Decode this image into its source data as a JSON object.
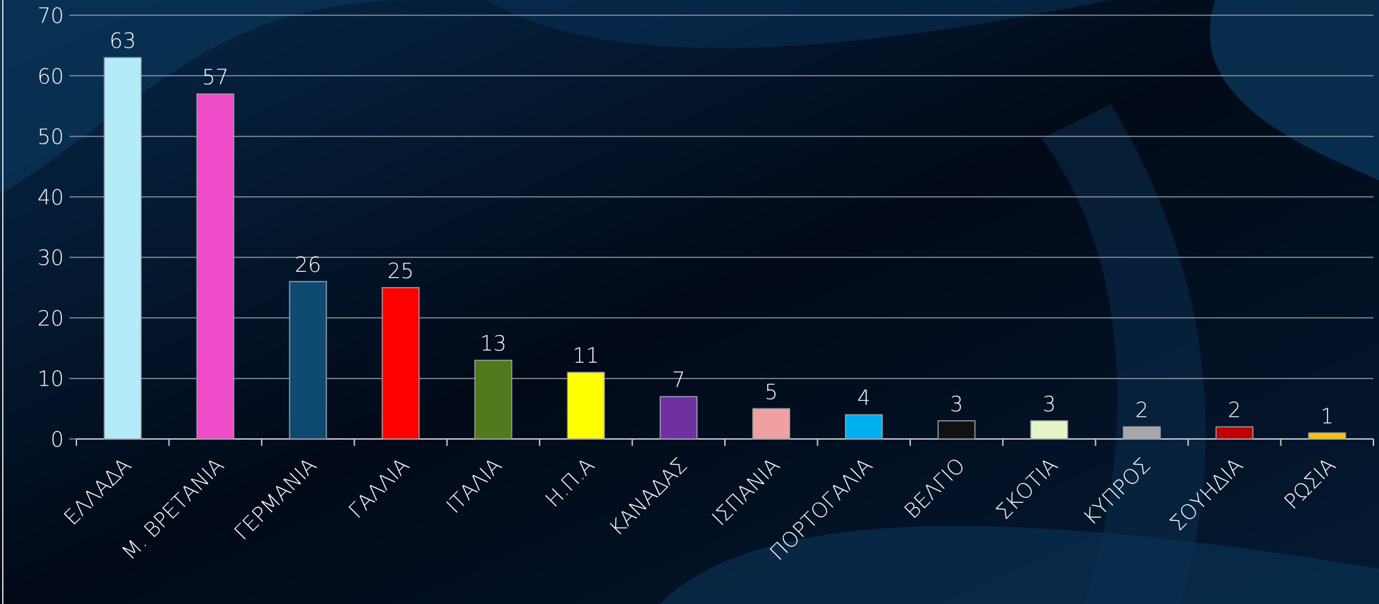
{
  "chart_data": {
    "type": "bar",
    "categories": [
      "ΕΛΛΑΔΑ",
      "Μ. ΒΡΕΤΑΝΙΑ",
      "ΓΕΡΜΑΝΙΑ",
      "ΓΑΛΛΙΑ",
      "ΙΤΑΛΙΑ",
      "Η.Π.Α",
      "ΚΑΝΑΔΑΣ",
      "ΙΣΠΑΝΙΑ",
      "ΠΟΡΤΟΓΑΛΙΑ",
      "ΒΕΛΓΙΟ",
      "ΣΚΟΤΙΑ",
      "ΚΥΠΡΟΣ",
      "ΣΟΥΗΔΙΑ",
      "ΡΩΣΙΑ"
    ],
    "values": [
      63,
      57,
      26,
      25,
      13,
      11,
      7,
      5,
      4,
      3,
      3,
      2,
      2,
      1
    ],
    "colors": [
      "#b3ecf9",
      "#ee4cc8",
      "#0f4a72",
      "#ff0000",
      "#4e7a1c",
      "#ffff00",
      "#7030a0",
      "#f0a0a0",
      "#00b0f0",
      "#111111",
      "#e6f5c8",
      "#a6a6a6",
      "#c00000",
      "#ffc000"
    ],
    "ylim": [
      0,
      70
    ],
    "yticks": [
      0,
      10,
      20,
      30,
      40,
      50,
      60,
      70
    ],
    "grid": true
  }
}
